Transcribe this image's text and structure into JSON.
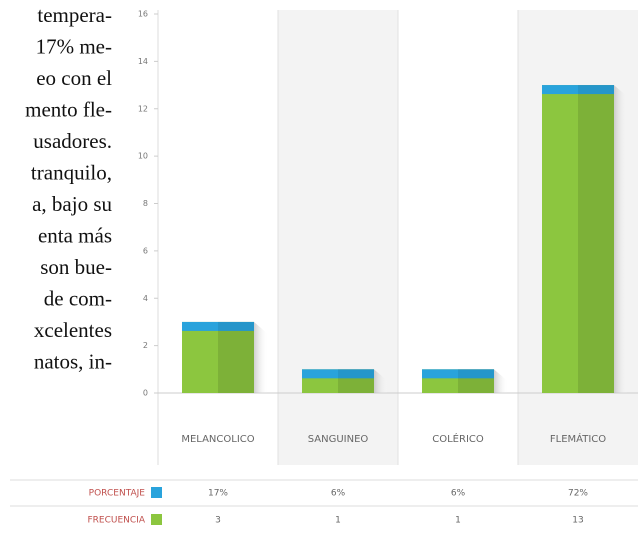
{
  "side_text": {
    "lines": [
      "tempera-",
      "17% me-",
      "eo con el",
      "mento fle-",
      "usadores.",
      "tranquilo,",
      "a, bajo su",
      "enta más",
      "son bue-",
      "de com-",
      "xcelentes",
      "natos, in-"
    ]
  },
  "chart_data": {
    "type": "bar",
    "categories": [
      "MELANCOLICO",
      "SANGUINEO",
      "COLÉRICO",
      "FLEMÁTICO"
    ],
    "series": [
      {
        "name": "PORCENTAJE",
        "color": "#29a3dc",
        "values": [
          17,
          6,
          6,
          72
        ],
        "value_labels": [
          "17%",
          "6%",
          "6%",
          "72%"
        ]
      },
      {
        "name": "FRECUENCIA",
        "color": "#8cc63f",
        "values": [
          3,
          1,
          1,
          13
        ]
      }
    ],
    "ylim": [
      0,
      16
    ],
    "yticks": [
      0,
      2,
      4,
      6,
      8,
      10,
      12,
      14,
      16
    ],
    "grid": false
  }
}
